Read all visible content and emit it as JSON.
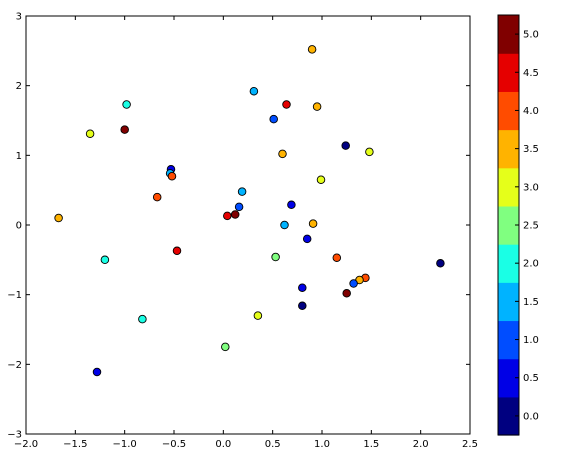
{
  "chart_data": {
    "type": "scatter",
    "xlim": [
      -2.0,
      2.5
    ],
    "ylim": [
      -3,
      3
    ],
    "xticks": [
      "−2.0",
      "−1.5",
      "−1.0",
      "−0.5",
      "0.0",
      "0.5",
      "1.0",
      "1.5",
      "2.0",
      "2.5"
    ],
    "yticks": [
      "−3",
      "−2",
      "−1",
      "0",
      "1",
      "2",
      "3"
    ],
    "grid": false,
    "colorbar": {
      "colormap": "jet",
      "levels": 11,
      "range": [
        -0.25,
        5.25
      ],
      "ticks": [
        "0.0",
        "0.5",
        "1.0",
        "1.5",
        "2.0",
        "2.5",
        "3.0",
        "3.5",
        "4.0",
        "4.5",
        "5.0"
      ]
    },
    "points": [
      {
        "x": 0.9,
        "y": 2.52,
        "c": 3.5
      },
      {
        "x": 0.31,
        "y": 1.92,
        "c": 1.5
      },
      {
        "x": 0.64,
        "y": 1.73,
        "c": 4.5
      },
      {
        "x": 0.95,
        "y": 1.7,
        "c": 3.5
      },
      {
        "x": -0.98,
        "y": 1.73,
        "c": 2.0
      },
      {
        "x": 0.51,
        "y": 1.52,
        "c": 1.0
      },
      {
        "x": -1.35,
        "y": 1.31,
        "c": 3.0
      },
      {
        "x": -1.0,
        "y": 1.37,
        "c": 5.0
      },
      {
        "x": 1.24,
        "y": 1.14,
        "c": 0.0
      },
      {
        "x": 1.48,
        "y": 1.05,
        "c": 3.0
      },
      {
        "x": 0.6,
        "y": 1.02,
        "c": 3.5
      },
      {
        "x": -0.53,
        "y": 0.8,
        "c": 0.5
      },
      {
        "x": -0.54,
        "y": 0.74,
        "c": 1.5
      },
      {
        "x": -0.52,
        "y": 0.7,
        "c": 4.0
      },
      {
        "x": 0.99,
        "y": 0.65,
        "c": 3.0
      },
      {
        "x": 0.19,
        "y": 0.48,
        "c": 1.5
      },
      {
        "x": -0.67,
        "y": 0.4,
        "c": 4.0
      },
      {
        "x": 0.69,
        "y": 0.29,
        "c": 0.5
      },
      {
        "x": 0.16,
        "y": 0.26,
        "c": 1.0
      },
      {
        "x": 0.12,
        "y": 0.15,
        "c": 5.0
      },
      {
        "x": 0.04,
        "y": 0.13,
        "c": 4.5
      },
      {
        "x": -1.67,
        "y": 0.1,
        "c": 3.5
      },
      {
        "x": 0.62,
        "y": 0.0,
        "c": 1.5
      },
      {
        "x": 0.91,
        "y": 0.02,
        "c": 3.5
      },
      {
        "x": 0.85,
        "y": -0.2,
        "c": 0.5
      },
      {
        "x": -0.47,
        "y": -0.37,
        "c": 4.5
      },
      {
        "x": 0.53,
        "y": -0.46,
        "c": 2.5
      },
      {
        "x": 1.15,
        "y": -0.47,
        "c": 4.0
      },
      {
        "x": -1.2,
        "y": -0.5,
        "c": 2.0
      },
      {
        "x": 2.2,
        "y": -0.55,
        "c": 0.0
      },
      {
        "x": 1.44,
        "y": -0.76,
        "c": 4.0
      },
      {
        "x": 1.38,
        "y": -0.79,
        "c": 3.5
      },
      {
        "x": 1.32,
        "y": -0.84,
        "c": 1.0
      },
      {
        "x": 0.8,
        "y": -0.9,
        "c": 0.5
      },
      {
        "x": 1.25,
        "y": -0.98,
        "c": 5.0
      },
      {
        "x": 0.8,
        "y": -1.16,
        "c": 0.0
      },
      {
        "x": 0.35,
        "y": -1.3,
        "c": 3.0
      },
      {
        "x": -0.82,
        "y": -1.35,
        "c": 2.0
      },
      {
        "x": 0.02,
        "y": -1.75,
        "c": 2.5
      },
      {
        "x": -1.28,
        "y": -2.11,
        "c": 0.5
      }
    ]
  }
}
